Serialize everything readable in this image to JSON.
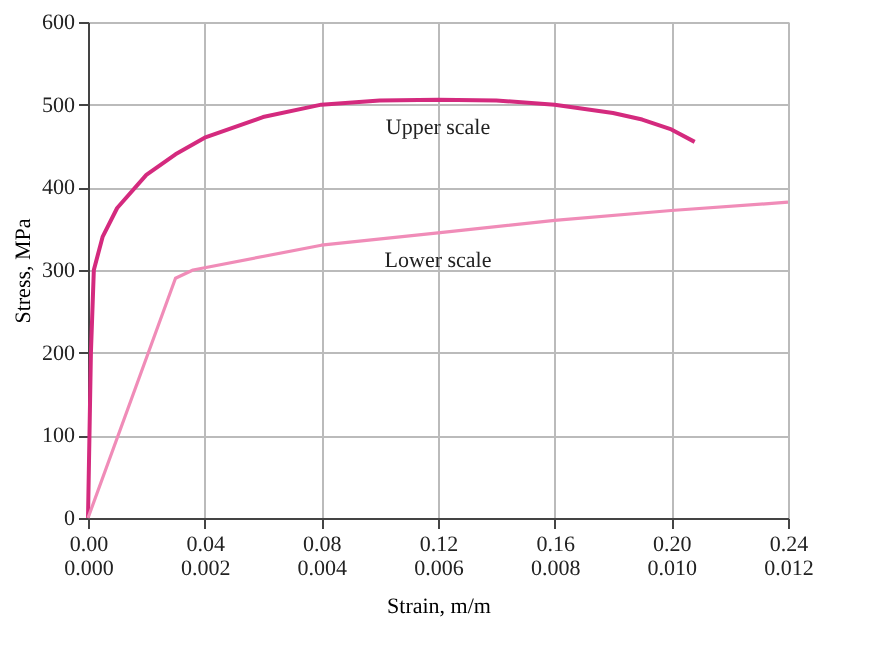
{
  "chart_data": {
    "type": "line",
    "xlabel": "Strain, m/m",
    "ylabel": "Stress, MPa",
    "xlim": [
      0,
      0.24
    ],
    "xticks": [
      {
        "value": 0,
        "label": "0.00"
      },
      0.04,
      0.08,
      0.12,
      0.16,
      {
        "value": 0.2,
        "label": "0.20"
      },
      0.24
    ],
    "x2lim": [
      0,
      0.012
    ],
    "x2ticks": [
      {
        "value": 0,
        "label": "0.000"
      },
      0.002,
      0.004,
      0.006,
      0.008,
      {
        "value": 0.01,
        "label": "0.010"
      },
      0.012
    ],
    "ylim": [
      0,
      600
    ],
    "yticks": [
      0,
      100,
      200,
      300,
      400,
      500,
      600
    ],
    "grid": true,
    "marker": "none",
    "line_style": "solid",
    "series": [
      {
        "name": "Upper scale",
        "color": "#d42a7e",
        "x": [
          0,
          0.001,
          0.002,
          0.005,
          0.01,
          0.02,
          0.03,
          0.04,
          0.06,
          0.08,
          0.1,
          0.12,
          0.14,
          0.16,
          0.18,
          0.19,
          0.2,
          0.208
        ],
        "values": [
          0,
          200,
          300,
          340,
          375,
          415,
          440,
          460,
          485,
          500,
          505,
          506,
          505,
          500,
          490,
          482,
          470,
          455
        ]
      },
      {
        "name": "Lower scale",
        "color": "#f08cb8",
        "axis": "x2",
        "x": [
          0,
          0.0015,
          0.0018,
          0.004,
          0.006,
          0.008,
          0.01,
          0.012
        ],
        "values": [
          0,
          290,
          300,
          330,
          345,
          360,
          372,
          382
        ]
      }
    ]
  }
}
